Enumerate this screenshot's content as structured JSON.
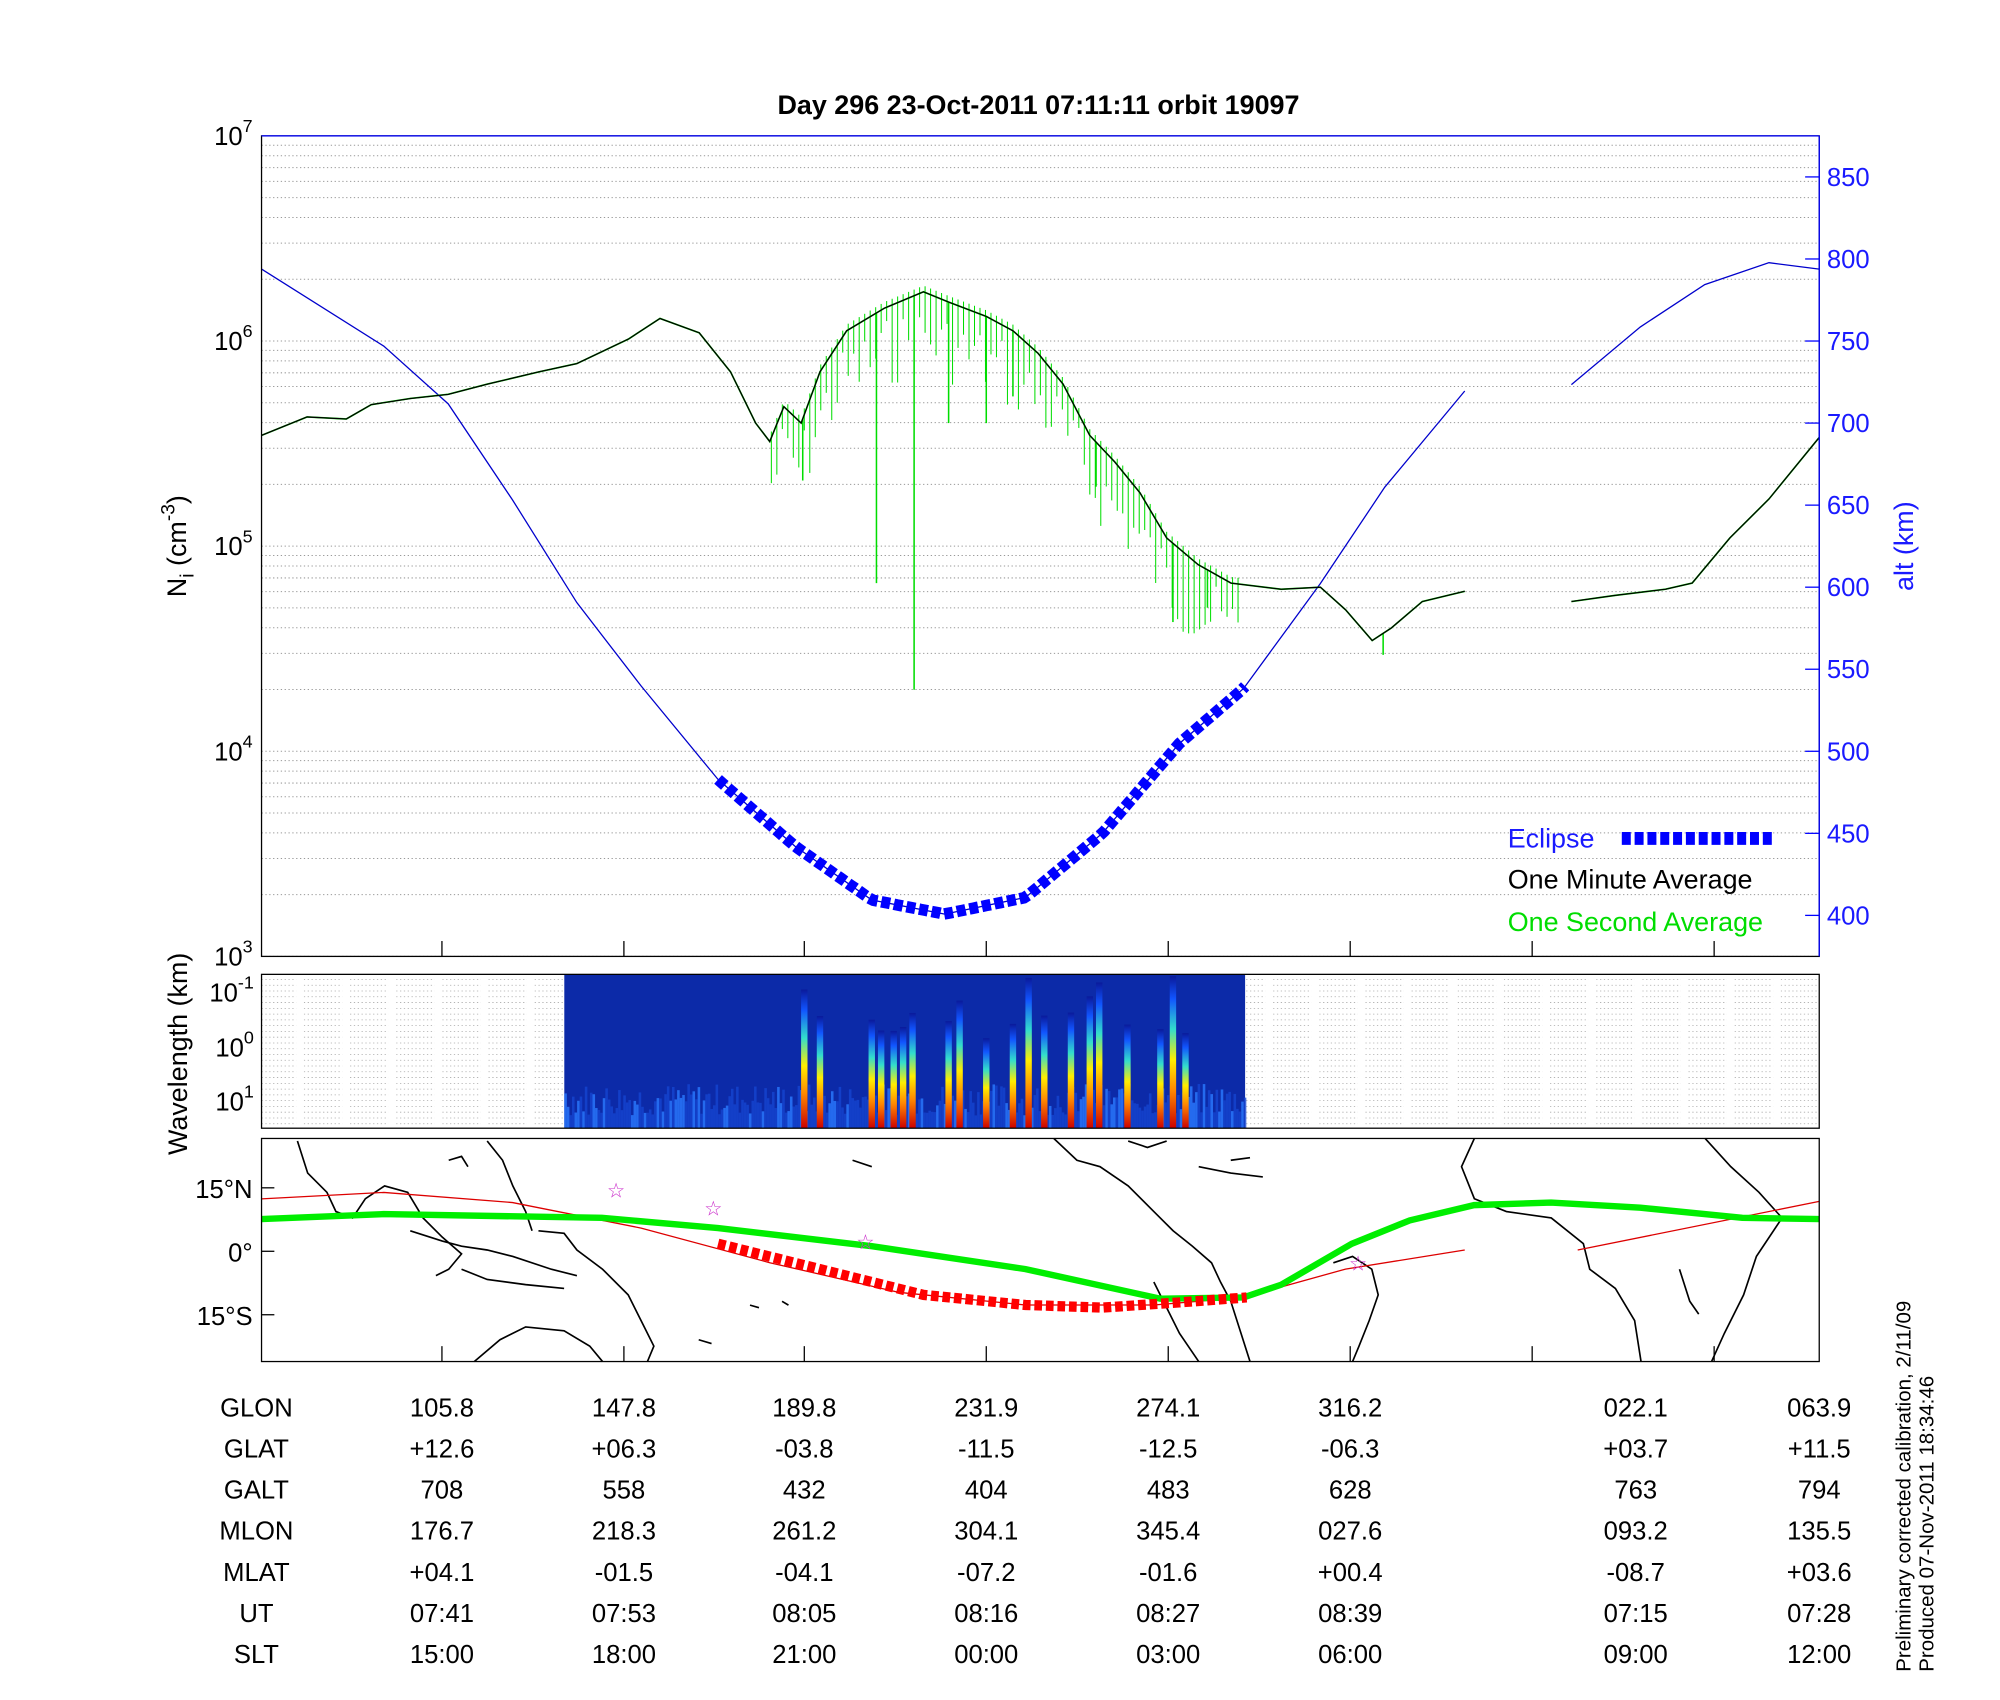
{
  "title": "Day 296  23-Oct-2011 07:11:11   orbit 19097",
  "footer": {
    "line1": "Preliminary corrected calibration, 2/11/09",
    "line2": "Produced 07-Nov-2011 18:34:46"
  },
  "colors": {
    "altitude": "#0000cc",
    "eclipse": "#0000ff",
    "minute_avg": "#000000",
    "second_avg": "#00dd00",
    "track": "#00ee00",
    "mag_equator": "#dd0000",
    "eclipse_track": "#ff0000",
    "star": "#cc33cc"
  },
  "chart_data": [
    {
      "type": "line",
      "title": "Day 296  23-Oct-2011 07:11:11   orbit 19097",
      "xlabel": "",
      "x_units": "minutes after 07:00 UT (plot timeline)",
      "xlim": [
        29.5,
        128.8
      ],
      "xticks": [
        41.0,
        52.6,
        64.1,
        75.7,
        87.3,
        98.9,
        110.5,
        122.1
      ],
      "ylabel": {
        "main": "N",
        "sub": "i",
        "pre": " (cm",
        "sup": "-3",
        "post": ")"
      },
      "yscale": "log",
      "ylim_log10": [
        3,
        7
      ],
      "ytick_base": "10",
      "ytick_exponents": [
        "3",
        "4",
        "5",
        "6",
        "7"
      ],
      "y2label": "alt (km)",
      "y2lim": [
        375,
        875
      ],
      "y2ticks": [
        "400",
        "450",
        "500",
        "550",
        "600",
        "650",
        "700",
        "750",
        "800",
        "850"
      ],
      "grid": "horizontal minor dotted",
      "legend": {
        "placement": "bottom-right",
        "entries": [
          "Eclipse",
          "One Minute Average",
          "One Second Average"
        ]
      },
      "series": [
        {
          "name": "One Minute Average",
          "segments": [
            {
              "x": [
                29.5,
                32.4,
                34.9,
                36.5,
                39.0,
                41.4,
                43.9,
                47.2,
                49.6,
                52.9,
                54.9,
                57.4,
                59.4,
                61.0,
                61.9,
                62.8,
                63.9,
                65.1,
                66.8,
                69.2,
                71.7,
                73.3,
                75.7,
                77.4,
                79.0,
                80.6,
                82.3,
                83.9,
                85.5,
                87.2,
                89.2,
                91.3,
                94.5,
                97.0,
                98.6,
                100.3,
                101.5,
                103.5,
                106.2
              ],
              "log10_Ni": [
                5.54,
                5.63,
                5.62,
                5.69,
                5.72,
                5.74,
                5.79,
                5.85,
                5.89,
                6.01,
                6.11,
                6.04,
                5.85,
                5.6,
                5.51,
                5.68,
                5.6,
                5.85,
                6.05,
                6.16,
                6.24,
                6.19,
                6.12,
                6.05,
                5.94,
                5.79,
                5.54,
                5.41,
                5.26,
                5.04,
                4.91,
                4.82,
                4.79,
                4.8,
                4.69,
                4.54,
                4.6,
                4.73,
                4.78
              ]
            },
            {
              "x": [
                113.0,
                115.8,
                119.0,
                120.7,
                123.1,
                125.6,
                128.8
              ],
              "log10_Ni": [
                4.73,
                4.76,
                4.79,
                4.82,
                5.04,
                5.23,
                5.53
              ]
            }
          ]
        },
        {
          "name": "One Second Average",
          "note": "follows minute average with downward spikes",
          "spikes": {
            "x": [
              64.0,
              68.7,
              71.1,
              73.3,
              75.7,
              77.4,
              82.7,
              87.6,
              89.8,
              101.0
            ],
            "log10_Ni_min": [
              5.32,
              4.82,
              4.3,
              5.6,
              5.6,
              5.73,
              5.29,
              4.63,
              4.7,
              4.47
            ]
          }
        },
        {
          "name": "Altitude (km)",
          "axis": "right",
          "segments": [
            {
              "x": [
                29.5,
                37.3,
                41.4,
                45.5,
                49.6,
                53.7,
                58.6,
                63.5,
                68.4,
                73.05,
                78.2,
                83.1,
                88.0,
                92.1,
                97.0,
                101.1,
                106.2
              ],
              "alt_km": [
                793.8,
                746.9,
                711.7,
                653.1,
                590.6,
                539.8,
                482.8,
                442.2,
                409.4,
                400.8,
                410.9,
                450.0,
                504.7,
                538.3,
                602.3,
                660.9,
                719.5
              ]
            },
            {
              "x": [
                113.0,
                117.4,
                121.5,
                125.6,
                128.8
              ],
              "alt_km": [
                723.4,
                758.6,
                784.4,
                797.7,
                793.8
              ]
            }
          ]
        },
        {
          "name": "Eclipse",
          "x_range": [
            58.6,
            92.3
          ]
        }
      ]
    },
    {
      "type": "heatmap",
      "ylabel": "Wavelength (km)",
      "yscale": "log",
      "ytick_base": "10",
      "ytick_exponents": [
        "-1",
        "0",
        "1"
      ],
      "x_range": [
        48.8,
        92.2
      ],
      "colormap": "jet",
      "intense_streaks_x": [
        64.1,
        65.1,
        68.4,
        69.0,
        69.8,
        70.4,
        71.0,
        73.3,
        74.0,
        75.7,
        77.4,
        78.4,
        79.4,
        81.1,
        82.3,
        82.9,
        84.7,
        86.8,
        87.6,
        88.4
      ]
    },
    {
      "type": "map",
      "yticks": [
        "15°N",
        "0°",
        "15°S"
      ],
      "ytick_values": [
        15,
        0,
        -15
      ],
      "ylim": [
        -26,
        27
      ],
      "satellite_track": {
        "x": [
          29.5,
          37.3,
          51.2,
          58.6,
          68.4,
          78.2,
          86.8,
          92.1,
          94.5,
          99.0,
          102.7,
          106.8,
          111.7,
          117.4,
          123.9,
          128.8
        ],
        "lat": [
          7.6,
          8.8,
          7.9,
          5.5,
          1.2,
          -4.2,
          -11.2,
          -10.9,
          -7.9,
          1.8,
          7.3,
          10.9,
          11.5,
          10.3,
          7.9,
          7.6
        ]
      },
      "magnetic_equator": {
        "segments": [
          {
            "x": [
              29.5,
              37.3,
              45.5,
              53.7,
              61.9,
              70.1,
              78.2,
              86.4,
              92.1,
              98.6,
              106.2
            ],
            "lat": [
              12.4,
              13.9,
              11.5,
              5.5,
              -2.7,
              -9.7,
              -12.7,
              -12.7,
              -10.9,
              -4.2,
              0.3
            ]
          },
          {
            "x": [
              113.4,
              128.8
            ],
            "lat": [
              0.3,
              11.8
            ]
          }
        ]
      },
      "eclipse_track": {
        "x": [
          58.6,
          65.1,
          71.7,
          78.2,
          83.1,
          88.0,
          92.3
        ],
        "lat": [
          1.8,
          -4.2,
          -10.3,
          -12.7,
          -13.3,
          -12.1,
          -10.9
        ]
      },
      "stars": {
        "x": [
          52.1,
          58.3,
          68.0,
          99.4
        ],
        "lat": [
          14.5,
          10.3,
          2.4,
          -2.7
        ]
      }
    }
  ],
  "table": {
    "rows": [
      {
        "label": "GLON",
        "values": [
          "105.8",
          "147.8",
          "189.8",
          "231.9",
          "274.1",
          "316.2",
          "022.1",
          "063.9"
        ]
      },
      {
        "label": "GLAT",
        "values": [
          "+12.6",
          "+06.3",
          "-03.8",
          "-11.5",
          "-12.5",
          "-06.3",
          "+03.7",
          "+11.5"
        ]
      },
      {
        "label": "GALT",
        "values": [
          "708",
          "558",
          "432",
          "404",
          "483",
          "628",
          "763",
          "794"
        ]
      },
      {
        "label": "MLON",
        "values": [
          "176.7",
          "218.3",
          "261.2",
          "304.1",
          "345.4",
          "027.6",
          "093.2",
          "135.5"
        ]
      },
      {
        "label": "MLAT",
        "values": [
          "+04.1",
          "-01.5",
          "-04.1",
          "-07.2",
          "-01.6",
          "+00.4",
          "-08.7",
          "+03.6"
        ]
      },
      {
        "label": "UT",
        "values": [
          "07:41",
          "07:53",
          "08:05",
          "08:16",
          "08:27",
          "08:39",
          "07:15",
          "07:28"
        ]
      },
      {
        "label": "SLT",
        "values": [
          "15:00",
          "18:00",
          "21:00",
          "00:00",
          "03:00",
          "06:00",
          "09:00",
          "12:00"
        ]
      }
    ],
    "column_x": [
      41.0,
      52.6,
      64.1,
      75.7,
      87.3,
      98.9,
      117.1,
      128.8
    ]
  }
}
